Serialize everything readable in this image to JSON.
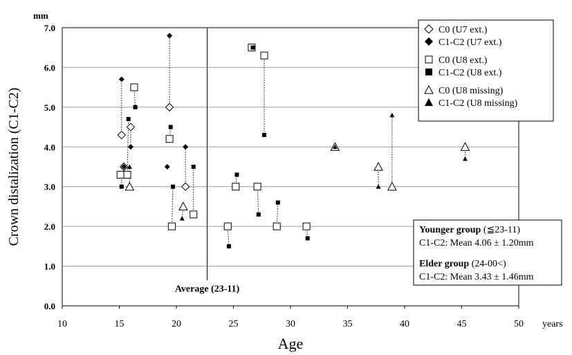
{
  "chart_data": {
    "type": "scatter",
    "title": "",
    "xlabel": "Age",
    "ylabel": "Crown distalization (C1-C2)",
    "x_unit": "years",
    "y_unit": "mm",
    "xlim": [
      10,
      50
    ],
    "ylim": [
      0,
      7
    ],
    "x_ticks": [
      "10",
      "15",
      "20",
      "25",
      "30",
      "35",
      "40",
      "45",
      "50"
    ],
    "y_ticks": [
      "0.0",
      "1.0",
      "2.0",
      "3.0",
      "4.0",
      "5.0",
      "6.0",
      "7.0"
    ],
    "grid": "horizontal",
    "legend_position": "top-right",
    "series": [
      {
        "name": "C0 (U7 ext.)",
        "marker": "open-diamond",
        "points": [
          [
            15.2,
            4.3
          ],
          [
            15.4,
            3.5
          ],
          [
            16.0,
            4.5
          ],
          [
            19.4,
            5.0
          ],
          [
            20.8,
            3.0
          ]
        ]
      },
      {
        "name": "C1-C2 (U7 ext.)",
        "marker": "filled-diamond",
        "points": [
          [
            15.2,
            5.7
          ],
          [
            15.4,
            3.5
          ],
          [
            16.0,
            4.0
          ],
          [
            19.4,
            6.8
          ],
          [
            19.2,
            3.5
          ],
          [
            20.8,
            4.0
          ]
        ]
      },
      {
        "name": "C0 (U8 ext.)",
        "marker": "open-square",
        "points": [
          [
            15.1,
            3.3
          ],
          [
            15.7,
            3.3
          ],
          [
            16.3,
            5.5
          ],
          [
            19.4,
            4.2
          ],
          [
            19.6,
            2.0
          ],
          [
            21.5,
            2.3
          ],
          [
            24.5,
            2.0
          ],
          [
            25.2,
            3.0
          ],
          [
            26.6,
            6.5
          ],
          [
            27.1,
            3.0
          ],
          [
            27.7,
            6.3
          ],
          [
            28.8,
            2.0
          ],
          [
            31.4,
            2.0
          ]
        ]
      },
      {
        "name": "C1-C2 (U8 ext.)",
        "marker": "filled-square",
        "points": [
          [
            15.2,
            3.0
          ],
          [
            15.8,
            4.7
          ],
          [
            16.4,
            5.0
          ],
          [
            19.5,
            4.5
          ],
          [
            19.7,
            3.0
          ],
          [
            21.5,
            3.5
          ],
          [
            24.6,
            1.5
          ],
          [
            25.3,
            3.3
          ],
          [
            26.7,
            6.5
          ],
          [
            27.2,
            2.3
          ],
          [
            27.7,
            4.3
          ],
          [
            28.9,
            2.6
          ],
          [
            31.5,
            1.7
          ]
        ]
      },
      {
        "name": "C0 (U8 missing)",
        "marker": "open-triangle",
        "points": [
          [
            15.9,
            3.0
          ],
          [
            20.6,
            2.5
          ],
          [
            33.9,
            4.0
          ],
          [
            37.7,
            3.5
          ],
          [
            38.9,
            3.0
          ],
          [
            45.3,
            4.0
          ]
        ]
      },
      {
        "name": "C1-C2 (U8 missing)",
        "marker": "filled-triangle",
        "points": [
          [
            15.9,
            3.5
          ],
          [
            20.5,
            2.2
          ],
          [
            33.9,
            4.0
          ],
          [
            37.7,
            3.0
          ],
          [
            38.9,
            4.8
          ],
          [
            45.3,
            3.7
          ]
        ]
      }
    ],
    "connectors": [
      [
        [
          15.2,
          4.3
        ],
        [
          15.2,
          5.7
        ]
      ],
      [
        [
          15.2,
          3.3
        ],
        [
          15.2,
          3.0
        ]
      ],
      [
        [
          15.4,
          3.5
        ],
        [
          15.4,
          3.5
        ]
      ],
      [
        [
          15.7,
          3.3
        ],
        [
          15.8,
          4.7
        ]
      ],
      [
        [
          15.9,
          3.0
        ],
        [
          15.9,
          3.5
        ]
      ],
      [
        [
          16.0,
          4.5
        ],
        [
          16.0,
          4.0
        ]
      ],
      [
        [
          16.3,
          5.5
        ],
        [
          16.4,
          5.0
        ]
      ],
      [
        [
          19.4,
          5.0
        ],
        [
          19.4,
          6.8
        ]
      ],
      [
        [
          19.4,
          4.2
        ],
        [
          19.5,
          4.5
        ]
      ],
      [
        [
          19.6,
          2.0
        ],
        [
          19.7,
          3.0
        ]
      ],
      [
        [
          20.6,
          2.5
        ],
        [
          20.5,
          2.2
        ]
      ],
      [
        [
          20.8,
          3.0
        ],
        [
          20.8,
          4.0
        ]
      ],
      [
        [
          21.5,
          2.3
        ],
        [
          21.5,
          3.5
        ]
      ],
      [
        [
          24.5,
          2.0
        ],
        [
          24.6,
          1.5
        ]
      ],
      [
        [
          25.2,
          3.0
        ],
        [
          25.3,
          3.3
        ]
      ],
      [
        [
          27.1,
          3.0
        ],
        [
          27.2,
          2.3
        ]
      ],
      [
        [
          27.7,
          6.3
        ],
        [
          27.7,
          4.3
        ]
      ],
      [
        [
          28.8,
          2.0
        ],
        [
          28.9,
          2.6
        ]
      ],
      [
        [
          31.4,
          2.0
        ],
        [
          31.5,
          1.7
        ]
      ],
      [
        [
          37.7,
          3.5
        ],
        [
          37.7,
          3.0
        ]
      ],
      [
        [
          38.9,
          3.0
        ],
        [
          38.9,
          4.8
        ]
      ],
      [
        [
          45.3,
          4.0
        ],
        [
          45.3,
          3.7
        ]
      ]
    ],
    "reference_line": {
      "x": 22.7,
      "label": "Average (23-11)"
    },
    "stats": {
      "younger_title": "Younger group",
      "younger_range": " (≦23-11)",
      "younger_mean": "C1-C2: Mean 4.06 ± 1.20mm",
      "elder_title": "Elder group",
      "elder_range": " (24-00<)",
      "elder_mean": "C1-C2: Mean 3.43 ± 1.46mm"
    }
  }
}
